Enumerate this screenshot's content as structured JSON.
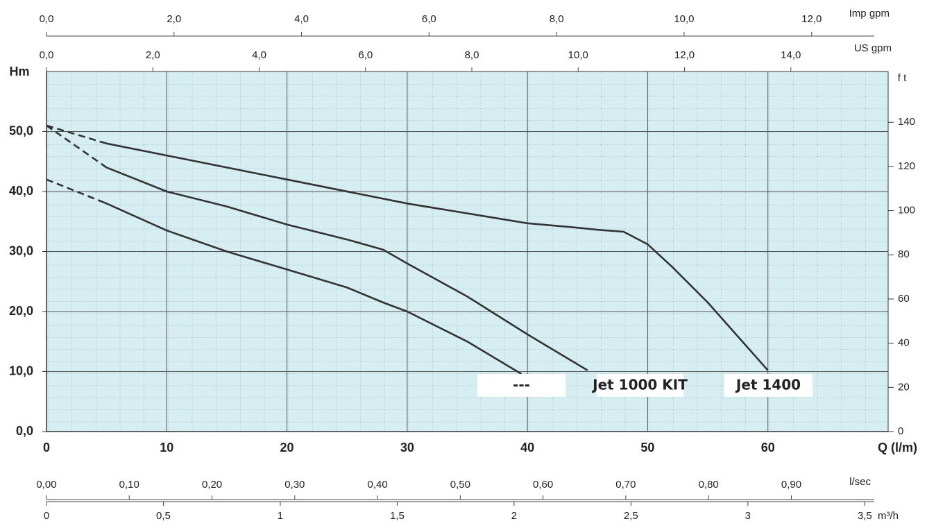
{
  "chart_data": {
    "type": "line",
    "x_label": "Q (l/m)",
    "y_label": "Hm",
    "y2_label": "f t",
    "background": "#d6eef1",
    "grid": true,
    "xlim": [
      0,
      70
    ],
    "xticks": [
      0,
      10,
      20,
      30,
      40,
      50,
      60
    ],
    "ylim": [
      0,
      60
    ],
    "yticks": [
      {
        "value": 0,
        "label": "0,0"
      },
      {
        "value": 10,
        "label": "10,0"
      },
      {
        "value": 20,
        "label": "20,0"
      },
      {
        "value": 30,
        "label": "30,0"
      },
      {
        "value": 40,
        "label": "40,0"
      },
      {
        "value": 50,
        "label": "50,0"
      }
    ],
    "y2lim": [
      0,
      163
    ],
    "y2ticks": [
      0,
      20,
      40,
      60,
      80,
      100,
      120,
      140
    ],
    "series": [
      {
        "name": "---",
        "color": "#333333",
        "dashed_to_x": 5,
        "x": [
          0,
          5,
          10,
          15,
          20,
          25,
          28,
          30,
          35,
          39.5
        ],
        "values": [
          42,
          38,
          33.5,
          30,
          27,
          24,
          21.5,
          20,
          15,
          9.6
        ]
      },
      {
        "name": "Jet 1000 KIT",
        "color": "#333333",
        "dashed_to_x": 5,
        "x": [
          0,
          5,
          10,
          15,
          20,
          25,
          28,
          30,
          35,
          40,
          45
        ],
        "values": [
          51,
          44,
          40,
          37.5,
          34.5,
          32,
          30.3,
          28,
          22.5,
          16.2,
          10.2
        ]
      },
      {
        "name": "Jet 1400",
        "color": "#333333",
        "dashed_to_x": 5,
        "x": [
          0,
          5,
          10,
          20,
          30,
          40,
          44,
          46,
          48,
          50,
          52,
          55,
          60
        ],
        "values": [
          51,
          48,
          46,
          42,
          38,
          34.7,
          34,
          33.6,
          33.3,
          31.2,
          27.5,
          21.5,
          10.2
        ]
      }
    ],
    "extra_axes": [
      {
        "label": "Imp gpm",
        "position": "top",
        "lim": [
          0,
          13.2
        ],
        "ticks": [
          {
            "value": 0,
            "label": "0,0"
          },
          {
            "value": 2,
            "label": "2,0"
          },
          {
            "value": 4,
            "label": "4,0"
          },
          {
            "value": 6,
            "label": "6,0"
          },
          {
            "value": 8,
            "label": "8,0"
          },
          {
            "value": 10,
            "label": "10,0"
          },
          {
            "value": 12,
            "label": "12,0"
          }
        ]
      },
      {
        "label": "US gpm",
        "position": "top",
        "lim": [
          0,
          15.83
        ],
        "ticks": [
          {
            "value": 0,
            "label": "0,0"
          },
          {
            "value": 2,
            "label": "2,0"
          },
          {
            "value": 4,
            "label": "4,0"
          },
          {
            "value": 6,
            "label": "6,0"
          },
          {
            "value": 8,
            "label": "8,0"
          },
          {
            "value": 10,
            "label": "10,0"
          },
          {
            "value": 12,
            "label": "12,0"
          },
          {
            "value": 14,
            "label": "14,0"
          }
        ]
      },
      {
        "label": "l/sec",
        "position": "bottom",
        "lim": [
          0,
          1.017
        ],
        "ticks": [
          {
            "value": 0,
            "label": "0,00"
          },
          {
            "value": 0.1,
            "label": "0,10"
          },
          {
            "value": 0.2,
            "label": "0,20"
          },
          {
            "value": 0.3,
            "label": "0,30"
          },
          {
            "value": 0.4,
            "label": "0,40"
          },
          {
            "value": 0.5,
            "label": "0,50"
          },
          {
            "value": 0.6,
            "label": "0,60"
          },
          {
            "value": 0.7,
            "label": "0,70"
          },
          {
            "value": 0.8,
            "label": "0,80"
          },
          {
            "value": 0.9,
            "label": "0,90"
          }
        ]
      },
      {
        "label": "m³/h",
        "position": "bottom",
        "lim": [
          0,
          3.6
        ],
        "ticks": [
          0,
          {
            "value": 0.5,
            "label": "0,5"
          },
          1,
          {
            "value": 1.5,
            "label": "1,5"
          },
          2,
          {
            "value": 2.5,
            "label": "2,5"
          },
          3,
          {
            "value": 3.5,
            "label": "3,5"
          }
        ]
      }
    ]
  }
}
